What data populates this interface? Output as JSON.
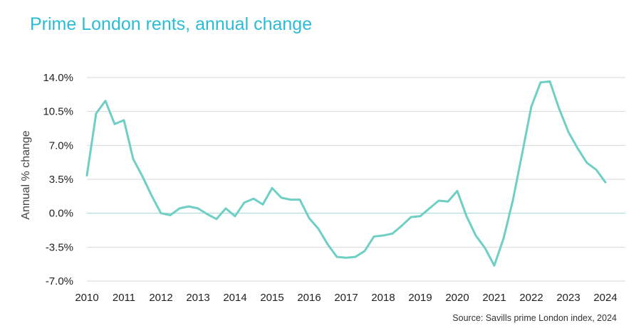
{
  "chart_data": {
    "type": "line",
    "title": "Prime London rents, annual change",
    "ylabel": "Annual % change",
    "xlabel": "",
    "source": "Source: Savills prime London index, 2024",
    "line_color": "#6fcfc4",
    "title_color": "#2bbcd4",
    "grid": true,
    "ylim": [
      -7.0,
      14.0
    ],
    "xlim": [
      2010,
      2024
    ],
    "y_ticks": [
      14.0,
      10.5,
      7.0,
      3.5,
      0.0,
      -3.5,
      -7.0
    ],
    "y_tick_labels": [
      "14.0%",
      "10.5%",
      "7.0%",
      "3.5%",
      "0.0%",
      "-3.5%",
      "-7.0%"
    ],
    "x_ticks": [
      2010,
      2011,
      2012,
      2013,
      2014,
      2015,
      2016,
      2017,
      2018,
      2019,
      2020,
      2021,
      2022,
      2023,
      2024
    ],
    "x_tick_labels": [
      "2010",
      "2011",
      "2012",
      "2013",
      "2014",
      "2015",
      "2016",
      "2017",
      "2018",
      "2019",
      "2020",
      "2021",
      "2022",
      "2023",
      "2024"
    ],
    "series": [
      {
        "x": [
          2010.0,
          2010.25,
          2010.5,
          2010.75,
          2011.0,
          2011.25,
          2011.5,
          2011.75,
          2012.0,
          2012.25,
          2012.5,
          2012.75,
          2013.0,
          2013.25,
          2013.5,
          2013.75,
          2014.0,
          2014.25,
          2014.5,
          2014.75,
          2015.0,
          2015.25,
          2015.5,
          2015.75,
          2016.0,
          2016.25,
          2016.5,
          2016.75,
          2017.0,
          2017.25,
          2017.5,
          2017.75,
          2018.0,
          2018.25,
          2018.5,
          2018.75,
          2019.0,
          2019.25,
          2019.5,
          2019.75,
          2020.0,
          2020.25,
          2020.5,
          2020.75,
          2021.0,
          2021.25,
          2021.5,
          2021.75,
          2022.0,
          2022.25,
          2022.5,
          2022.75,
          2023.0,
          2023.25,
          2023.5,
          2023.75,
          2024.0
        ],
        "values": [
          3.9,
          10.3,
          11.6,
          9.2,
          9.6,
          5.6,
          3.8,
          1.8,
          0.0,
          -0.2,
          0.5,
          0.7,
          0.5,
          -0.1,
          -0.6,
          0.5,
          -0.3,
          1.1,
          1.5,
          0.9,
          2.6,
          1.6,
          1.4,
          1.4,
          -0.5,
          -1.6,
          -3.2,
          -4.5,
          -4.6,
          -4.5,
          -3.9,
          -2.4,
          -2.3,
          -2.1,
          -1.3,
          -0.4,
          -0.3,
          0.5,
          1.3,
          1.2,
          2.3,
          -0.3,
          -2.3,
          -3.6,
          -5.4,
          -2.6,
          1.3,
          6.1,
          11.0,
          13.5,
          13.6,
          10.8,
          8.4,
          6.7,
          5.2,
          4.5,
          3.2
        ]
      }
    ]
  }
}
